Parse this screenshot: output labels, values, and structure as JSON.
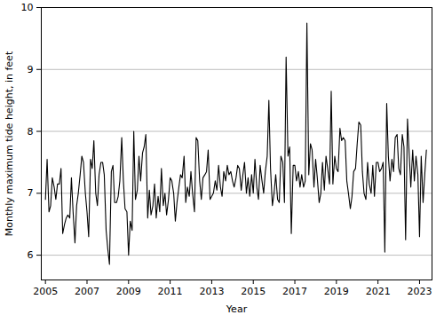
{
  "chart_data": {
    "type": "line",
    "x_label": "Year",
    "y_label": "Monthly maximum tide height, in feet",
    "color": "#000000",
    "grid": true,
    "xlim": [
      2004.8,
      2023.6
    ],
    "xticks": [
      2005,
      2007,
      2009,
      2011,
      2013,
      2015,
      2017,
      2019,
      2021,
      2023
    ],
    "ylim": [
      5.6,
      10
    ],
    "yticks": [
      6,
      7,
      8,
      9,
      10
    ],
    "x": [
      2005.0,
      2005.08,
      2005.17,
      2005.25,
      2005.33,
      2005.42,
      2005.5,
      2005.58,
      2005.67,
      2005.75,
      2005.83,
      2005.92,
      2006.0,
      2006.08,
      2006.17,
      2006.25,
      2006.33,
      2006.42,
      2006.5,
      2006.58,
      2006.67,
      2006.75,
      2006.83,
      2006.92,
      2007.0,
      2007.08,
      2007.17,
      2007.25,
      2007.33,
      2007.42,
      2007.5,
      2007.58,
      2007.67,
      2007.75,
      2007.83,
      2007.92,
      2008.0,
      2008.08,
      2008.17,
      2008.25,
      2008.33,
      2008.42,
      2008.5,
      2008.58,
      2008.67,
      2008.75,
      2008.83,
      2008.92,
      2009.0,
      2009.08,
      2009.17,
      2009.25,
      2009.33,
      2009.42,
      2009.5,
      2009.58,
      2009.67,
      2009.75,
      2009.83,
      2009.92,
      2010.0,
      2010.08,
      2010.17,
      2010.25,
      2010.33,
      2010.42,
      2010.5,
      2010.58,
      2010.67,
      2010.75,
      2010.83,
      2010.92,
      2011.0,
      2011.08,
      2011.17,
      2011.25,
      2011.33,
      2011.42,
      2011.5,
      2011.58,
      2011.67,
      2011.75,
      2011.83,
      2011.92,
      2012.0,
      2012.08,
      2012.17,
      2012.25,
      2012.33,
      2012.42,
      2012.5,
      2012.58,
      2012.67,
      2012.75,
      2012.83,
      2012.92,
      2013.0,
      2013.08,
      2013.17,
      2013.25,
      2013.33,
      2013.42,
      2013.5,
      2013.58,
      2013.67,
      2013.75,
      2013.83,
      2013.92,
      2014.0,
      2014.08,
      2014.17,
      2014.25,
      2014.33,
      2014.42,
      2014.5,
      2014.58,
      2014.67,
      2014.75,
      2014.83,
      2014.92,
      2015.0,
      2015.08,
      2015.17,
      2015.25,
      2015.33,
      2015.42,
      2015.5,
      2015.58,
      2015.67,
      2015.75,
      2015.83,
      2015.92,
      2016.0,
      2016.08,
      2016.17,
      2016.25,
      2016.33,
      2016.42,
      2016.5,
      2016.58,
      2016.67,
      2016.75,
      2016.83,
      2016.92,
      2017.0,
      2017.08,
      2017.17,
      2017.25,
      2017.33,
      2017.42,
      2017.5,
      2017.58,
      2017.67,
      2017.75,
      2017.83,
      2017.92,
      2018.0,
      2018.08,
      2018.17,
      2018.25,
      2018.33,
      2018.42,
      2018.5,
      2018.58,
      2018.67,
      2018.75,
      2018.83,
      2018.92,
      2019.0,
      2019.08,
      2019.17,
      2019.25,
      2019.33,
      2019.42,
      2019.5,
      2019.58,
      2019.67,
      2019.75,
      2019.83,
      2019.92,
      2020.0,
      2020.08,
      2020.17,
      2020.25,
      2020.33,
      2020.42,
      2020.5,
      2020.58,
      2020.67,
      2020.75,
      2020.83,
      2020.92,
      2021.0,
      2021.08,
      2021.17,
      2021.25,
      2021.33,
      2021.42,
      2021.5,
      2021.58,
      2021.67,
      2021.75,
      2021.83,
      2021.92,
      2022.0,
      2022.08,
      2022.17,
      2022.25,
      2022.33,
      2022.42,
      2022.5,
      2022.58,
      2022.67,
      2022.75,
      2022.83,
      2022.92,
      2023.0,
      2023.08,
      2023.17,
      2023.25,
      2023.33
    ],
    "values": [
      6.9,
      7.55,
      6.7,
      6.8,
      7.25,
      7.1,
      6.9,
      7.15,
      7.15,
      7.4,
      6.35,
      6.5,
      6.6,
      6.65,
      6.6,
      7.25,
      6.7,
      6.2,
      6.8,
      7.0,
      7.3,
      7.6,
      7.5,
      7.0,
      6.7,
      6.3,
      7.55,
      7.4,
      7.85,
      7.0,
      6.8,
      7.3,
      7.5,
      7.5,
      7.3,
      6.4,
      6.1,
      5.85,
      7.35,
      7.45,
      6.85,
      6.85,
      6.95,
      7.2,
      7.9,
      7.2,
      6.75,
      6.7,
      6.0,
      6.55,
      6.4,
      8.0,
      6.9,
      7.05,
      7.6,
      7.2,
      7.65,
      7.75,
      7.95,
      6.6,
      7.05,
      6.65,
      6.8,
      7.15,
      6.6,
      6.95,
      6.7,
      7.4,
      6.8,
      7.0,
      6.65,
      6.9,
      7.25,
      7.2,
      7.0,
      6.55,
      6.85,
      7.1,
      7.3,
      7.25,
      7.6,
      6.85,
      7.1,
      6.95,
      7.35,
      7.0,
      6.7,
      7.9,
      7.85,
      7.2,
      6.9,
      7.25,
      7.3,
      7.35,
      7.7,
      6.9,
      6.95,
      7.0,
      7.2,
      7.05,
      7.45,
      7.1,
      6.95,
      7.35,
      7.2,
      7.45,
      7.3,
      7.35,
      7.2,
      7.1,
      7.25,
      7.45,
      7.4,
      7.05,
      7.3,
      7.5,
      7.0,
      7.25,
      6.95,
      7.3,
      7.0,
      7.55,
      7.1,
      6.9,
      7.45,
      7.2,
      7.0,
      7.35,
      7.6,
      8.5,
      7.4,
      6.8,
      7.0,
      7.3,
      6.9,
      6.85,
      7.6,
      7.5,
      6.85,
      9.2,
      7.6,
      7.75,
      6.35,
      7.45,
      7.45,
      7.2,
      7.35,
      7.1,
      7.3,
      7.1,
      7.2,
      9.75,
      7.3,
      7.8,
      7.7,
      7.1,
      7.55,
      7.25,
      6.85,
      7.0,
      7.5,
      7.05,
      7.6,
      7.4,
      7.15,
      8.65,
      7.15,
      7.6,
      7.4,
      7.35,
      8.05,
      7.85,
      7.9,
      7.85,
      7.2,
      7.0,
      6.75,
      6.95,
      7.35,
      7.4,
      7.8,
      8.15,
      8.1,
      7.35,
      7.0,
      6.9,
      7.5,
      7.15,
      7.0,
      7.45,
      6.95,
      7.5,
      7.5,
      7.35,
      7.4,
      7.5,
      6.05,
      8.45,
      7.6,
      7.2,
      7.55,
      7.35,
      7.9,
      7.95,
      7.4,
      7.3,
      7.95,
      7.75,
      6.25,
      8.2,
      7.65,
      7.1,
      7.7,
      7.2,
      7.6,
      7.3,
      6.3,
      7.6,
      6.85,
      7.3,
      7.7
    ]
  }
}
